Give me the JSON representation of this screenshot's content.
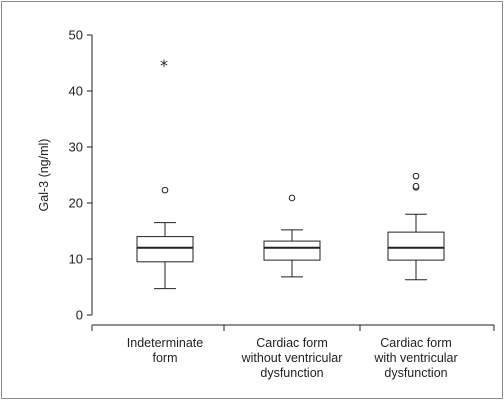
{
  "chart_data": {
    "type": "box",
    "title": "",
    "xlabel": "",
    "ylabel": "Gal-3 (ng/ml)",
    "ylim": [
      0,
      50
    ],
    "yticks": [
      0,
      10,
      20,
      30,
      40,
      50
    ],
    "grid": false,
    "legend": "none",
    "categories": [
      [
        "Indeterminate",
        "form"
      ],
      [
        "Cardiac form",
        "without ventricular",
        "dysfunction"
      ],
      [
        "Cardiac form",
        "with ventricular",
        "dysfunction"
      ]
    ],
    "boxes": [
      {
        "whisker_low": 4.7,
        "q1": 9.5,
        "median": 12.0,
        "q3": 14.0,
        "whisker_high": 16.5,
        "outliers": [
          22.3
        ],
        "extremes": [
          45.0
        ]
      },
      {
        "whisker_low": 6.8,
        "q1": 9.8,
        "median": 12.0,
        "q3": 13.2,
        "whisker_high": 15.2,
        "outliers": [
          20.9
        ],
        "extremes": []
      },
      {
        "whisker_low": 6.3,
        "q1": 9.8,
        "median": 12.0,
        "q3": 14.8,
        "whisker_high": 18.0,
        "outliers": [
          22.8,
          23.0,
          24.8
        ],
        "extremes": []
      }
    ],
    "colors": {
      "stroke": "#222222",
      "box_fill": "#ffffff"
    }
  }
}
